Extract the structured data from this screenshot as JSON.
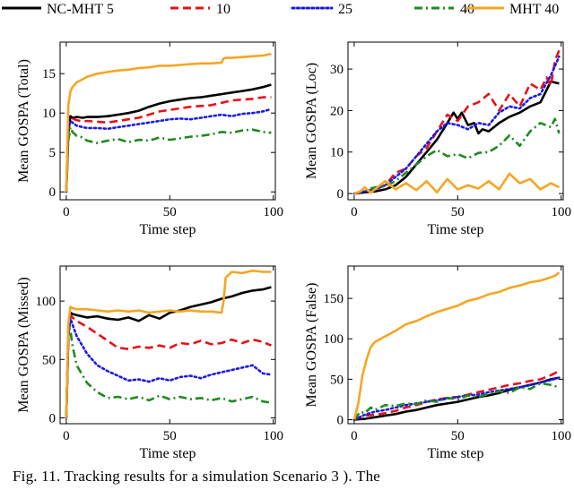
{
  "legend": [
    {
      "label": "NC-MHT 5",
      "color": "#000000",
      "dash": "solid"
    },
    {
      "label": "10",
      "color": "#e8101a",
      "dash": "dashed"
    },
    {
      "label": "25",
      "color": "#1a1ae6",
      "dash": "dotted"
    },
    {
      "label": "40",
      "color": "#1f8a1f",
      "dash": "dashdot"
    },
    {
      "label": "MHT 40",
      "color": "#f5a623",
      "dash": "solid"
    }
  ],
  "caption": "Fig. 11.  Tracking results for a simulation Scenario 3 ). The",
  "chart_data": [
    {
      "type": "line",
      "title": "",
      "xlabel": "Time step",
      "ylabel": "Mean GOSPA (Total)",
      "xlim": [
        -3,
        101
      ],
      "ylim": [
        -1,
        19
      ],
      "xticks": [
        0,
        50,
        100
      ],
      "yticks": [
        0,
        5,
        10,
        15
      ],
      "series": [
        {
          "name": "NC-MHT 5",
          "x": [
            0,
            1,
            2,
            3,
            5,
            8,
            10,
            15,
            20,
            25,
            30,
            35,
            40,
            45,
            50,
            55,
            60,
            65,
            70,
            75,
            80,
            85,
            90,
            95,
            99
          ],
          "y": [
            0,
            7.5,
            9.6,
            9.4,
            9.5,
            9.4,
            9.5,
            9.5,
            9.6,
            9.8,
            10.0,
            10.3,
            10.8,
            11.2,
            11.5,
            11.7,
            11.9,
            12.0,
            12.2,
            12.4,
            12.6,
            12.8,
            13.0,
            13.3,
            13.6
          ]
        },
        {
          "name": "10",
          "x": [
            0,
            1,
            2,
            3,
            5,
            8,
            10,
            15,
            20,
            25,
            30,
            35,
            40,
            45,
            50,
            55,
            60,
            65,
            70,
            75,
            80,
            85,
            90,
            95,
            99
          ],
          "y": [
            0,
            8.5,
            9.2,
            9.3,
            9.1,
            8.9,
            9.0,
            8.9,
            8.8,
            9.0,
            9.2,
            9.4,
            9.8,
            10.2,
            10.4,
            10.6,
            10.8,
            10.9,
            11.0,
            11.3,
            11.6,
            11.7,
            11.8,
            12.0,
            12.0
          ]
        },
        {
          "name": "25",
          "x": [
            0,
            1,
            2,
            3,
            5,
            8,
            10,
            15,
            20,
            25,
            30,
            35,
            40,
            45,
            50,
            55,
            60,
            65,
            70,
            75,
            80,
            85,
            90,
            95,
            99
          ],
          "y": [
            0,
            8.0,
            9.0,
            8.8,
            8.4,
            8.2,
            8.1,
            8.1,
            8.0,
            8.2,
            8.4,
            8.6,
            8.8,
            9.0,
            9.2,
            9.3,
            9.2,
            9.4,
            9.6,
            9.8,
            9.6,
            9.9,
            10.0,
            10.2,
            10.5
          ]
        },
        {
          "name": "40",
          "x": [
            0,
            1,
            2,
            3,
            5,
            8,
            10,
            15,
            20,
            25,
            30,
            35,
            40,
            45,
            50,
            55,
            60,
            65,
            70,
            75,
            80,
            85,
            90,
            95,
            99
          ],
          "y": [
            0,
            6.5,
            8.2,
            7.6,
            7.1,
            6.9,
            6.5,
            6.2,
            6.5,
            6.7,
            6.3,
            6.6,
            6.5,
            6.9,
            6.6,
            6.8,
            7.0,
            7.1,
            7.3,
            7.6,
            7.5,
            7.8,
            7.9,
            7.6,
            7.5
          ]
        },
        {
          "name": "MHT 40",
          "x": [
            0,
            1,
            2,
            3,
            5,
            8,
            10,
            15,
            20,
            25,
            30,
            35,
            40,
            45,
            50,
            55,
            60,
            65,
            70,
            75,
            76,
            77,
            80,
            85,
            90,
            95,
            99
          ],
          "y": [
            0,
            11.0,
            12.7,
            13.3,
            13.9,
            14.3,
            14.6,
            15.0,
            15.2,
            15.4,
            15.5,
            15.7,
            15.8,
            16.0,
            16.0,
            16.1,
            16.2,
            16.3,
            16.3,
            16.4,
            16.9,
            17.0,
            17.0,
            17.1,
            17.2,
            17.3,
            17.5
          ]
        }
      ]
    },
    {
      "type": "line",
      "title": "",
      "xlabel": "Time step",
      "ylabel": "Mean GOSPA (Loc)",
      "xlim": [
        -3,
        101
      ],
      "ylim": [
        -1.5,
        36.5
      ],
      "xticks": [
        0,
        50,
        100
      ],
      "yticks": [
        0,
        10,
        20,
        30
      ],
      "series": [
        {
          "name": "NC-MHT 5",
          "x": [
            0,
            5,
            10,
            15,
            20,
            25,
            30,
            35,
            40,
            45,
            48,
            50,
            52,
            55,
            58,
            60,
            62,
            65,
            70,
            75,
            80,
            85,
            90,
            95,
            99
          ],
          "y": [
            0,
            0.3,
            0.5,
            1.0,
            2.0,
            4.0,
            7.0,
            10.0,
            13.0,
            17.0,
            19.5,
            18.0,
            19.5,
            16.5,
            17.0,
            14.5,
            15.5,
            15.0,
            17.0,
            18.5,
            19.5,
            21.0,
            22.0,
            27.0,
            26.5
          ]
        },
        {
          "name": "10",
          "x": [
            0,
            5,
            10,
            15,
            20,
            25,
            30,
            35,
            40,
            45,
            50,
            55,
            60,
            65,
            70,
            75,
            80,
            85,
            90,
            93,
            95,
            97,
            99
          ],
          "y": [
            0,
            0.5,
            1.0,
            2.0,
            5.0,
            6.0,
            9.0,
            11.0,
            15.0,
            19.0,
            17.5,
            21.0,
            22.0,
            24.0,
            20.0,
            24.0,
            21.0,
            26.5,
            25.0,
            28.0,
            26.0,
            32.0,
            34.5
          ]
        },
        {
          "name": "25",
          "x": [
            0,
            5,
            10,
            15,
            20,
            25,
            30,
            35,
            40,
            45,
            50,
            55,
            60,
            65,
            70,
            75,
            80,
            85,
            90,
            95,
            99
          ],
          "y": [
            0,
            0.5,
            1.0,
            2.0,
            4.0,
            6.0,
            9.0,
            12.0,
            15.0,
            17.0,
            16.5,
            15.5,
            17.0,
            16.5,
            19.5,
            21.0,
            20.5,
            23.0,
            24.0,
            28.5,
            33.0
          ]
        },
        {
          "name": "40",
          "x": [
            0,
            5,
            10,
            15,
            20,
            25,
            30,
            35,
            40,
            45,
            50,
            55,
            60,
            65,
            70,
            75,
            80,
            85,
            90,
            95,
            97,
            99
          ],
          "y": [
            0,
            0.8,
            1.5,
            1.8,
            3.0,
            5.0,
            7.0,
            9.0,
            10.5,
            9.0,
            9.5,
            8.5,
            9.8,
            10.0,
            11.5,
            14.0,
            11.5,
            15.0,
            17.0,
            16.0,
            18.0,
            14.5
          ]
        },
        {
          "name": "MHT 40",
          "x": [
            0,
            3,
            5,
            8,
            10,
            15,
            20,
            25,
            30,
            35,
            40,
            45,
            50,
            55,
            60,
            65,
            70,
            75,
            80,
            85,
            90,
            95,
            99
          ],
          "y": [
            0,
            0.5,
            1.5,
            0.2,
            1.0,
            3.0,
            1.0,
            2.5,
            0.8,
            3.0,
            0.3,
            3.5,
            1.0,
            2.0,
            1.2,
            3.0,
            1.0,
            4.8,
            2.5,
            3.5,
            1.0,
            2.5,
            1.5
          ]
        }
      ]
    },
    {
      "type": "line",
      "title": "",
      "xlabel": "Time step",
      "ylabel": "Mean GOSPA (Missed)",
      "xlim": [
        -3,
        101
      ],
      "ylim": [
        -5,
        130
      ],
      "xticks": [
        0,
        50,
        100
      ],
      "yticks": [
        0,
        50,
        100
      ],
      "series": [
        {
          "name": "NC-MHT 5",
          "x": [
            0,
            1,
            2,
            3,
            5,
            10,
            15,
            20,
            25,
            30,
            35,
            40,
            45,
            50,
            55,
            60,
            65,
            70,
            75,
            80,
            85,
            90,
            95,
            99
          ],
          "y": [
            0,
            70,
            90,
            89,
            88,
            86,
            87,
            85,
            84,
            86,
            83,
            88,
            85,
            90,
            92,
            95,
            97,
            99,
            102,
            104,
            107,
            109,
            110,
            112
          ]
        },
        {
          "name": "10",
          "x": [
            0,
            1,
            2,
            3,
            5,
            10,
            15,
            20,
            25,
            30,
            35,
            40,
            45,
            50,
            55,
            60,
            65,
            70,
            75,
            80,
            85,
            90,
            95,
            99
          ],
          "y": [
            0,
            70,
            88,
            86,
            83,
            78,
            72,
            66,
            60,
            59,
            61,
            60,
            62,
            60,
            64,
            63,
            66,
            63,
            64,
            67,
            64,
            67,
            65,
            62
          ]
        },
        {
          "name": "25",
          "x": [
            0,
            1,
            2,
            3,
            5,
            10,
            15,
            20,
            25,
            30,
            35,
            40,
            45,
            50,
            55,
            60,
            65,
            70,
            75,
            80,
            85,
            90,
            95,
            99
          ],
          "y": [
            0,
            70,
            85,
            80,
            70,
            55,
            45,
            40,
            36,
            32,
            33,
            31,
            34,
            32,
            35,
            36,
            34,
            37,
            39,
            41,
            43,
            45,
            38,
            37
          ]
        },
        {
          "name": "40",
          "x": [
            0,
            1,
            2,
            3,
            5,
            10,
            15,
            20,
            25,
            30,
            35,
            40,
            45,
            50,
            55,
            60,
            65,
            70,
            75,
            80,
            85,
            90,
            95,
            99
          ],
          "y": [
            0,
            80,
            75,
            62,
            45,
            30,
            22,
            17,
            18,
            16,
            18,
            15,
            19,
            16,
            18,
            16,
            17,
            15,
            17,
            14,
            16,
            18,
            14,
            13
          ]
        },
        {
          "name": "MHT 40",
          "x": [
            0,
            1,
            2,
            3,
            5,
            10,
            15,
            20,
            25,
            30,
            35,
            40,
            45,
            50,
            55,
            60,
            65,
            70,
            75,
            76,
            77,
            80,
            85,
            90,
            95,
            99
          ],
          "y": [
            0,
            80,
            95,
            94,
            93,
            93,
            92,
            91,
            92,
            91,
            92,
            90,
            91,
            92,
            91,
            92,
            91,
            91,
            90,
            100,
            120,
            125,
            124,
            126,
            125,
            125
          ]
        }
      ]
    },
    {
      "type": "line",
      "title": "",
      "xlabel": "Time step",
      "ylabel": "Mean GOSPA (False)",
      "xlim": [
        -3,
        101
      ],
      "ylim": [
        -5,
        190
      ],
      "xticks": [
        0,
        50,
        100
      ],
      "yticks": [
        0,
        50,
        100,
        150
      ],
      "series": [
        {
          "name": "NC-MHT 5",
          "x": [
            0,
            5,
            10,
            15,
            20,
            25,
            30,
            35,
            40,
            45,
            50,
            55,
            60,
            65,
            70,
            75,
            80,
            85,
            90,
            95,
            99
          ],
          "y": [
            0,
            1,
            3,
            5,
            7,
            10,
            12,
            15,
            18,
            20,
            22,
            25,
            28,
            30,
            33,
            37,
            40,
            43,
            46,
            50,
            52
          ]
        },
        {
          "name": "10",
          "x": [
            0,
            5,
            10,
            15,
            20,
            25,
            30,
            35,
            40,
            45,
            50,
            55,
            60,
            65,
            70,
            75,
            80,
            85,
            90,
            95,
            99
          ],
          "y": [
            0,
            5,
            6,
            8,
            11,
            15,
            18,
            22,
            25,
            27,
            28,
            31,
            34,
            37,
            40,
            43,
            45,
            48,
            50,
            55,
            60
          ]
        },
        {
          "name": "25",
          "x": [
            0,
            5,
            10,
            15,
            20,
            25,
            30,
            35,
            40,
            45,
            50,
            55,
            60,
            65,
            70,
            75,
            80,
            85,
            90,
            95,
            99
          ],
          "y": [
            0,
            6,
            10,
            12,
            15,
            18,
            20,
            22,
            24,
            26,
            28,
            30,
            31,
            34,
            36,
            38,
            40,
            43,
            46,
            49,
            52
          ]
        },
        {
          "name": "40",
          "x": [
            0,
            3,
            5,
            8,
            10,
            15,
            20,
            25,
            30,
            35,
            40,
            45,
            50,
            55,
            60,
            65,
            70,
            75,
            80,
            85,
            90,
            95,
            99
          ],
          "y": [
            0,
            10,
            8,
            15,
            12,
            18,
            17,
            20,
            19,
            24,
            22,
            27,
            25,
            30,
            28,
            32,
            35,
            33,
            40,
            38,
            45,
            43,
            40
          ]
        },
        {
          "name": "MHT 40",
          "x": [
            0,
            2,
            4,
            6,
            8,
            10,
            15,
            20,
            25,
            30,
            35,
            40,
            45,
            50,
            55,
            60,
            65,
            70,
            75,
            80,
            85,
            90,
            95,
            97,
            99
          ],
          "y": [
            0,
            20,
            55,
            75,
            90,
            96,
            103,
            110,
            118,
            122,
            128,
            133,
            137,
            141,
            147,
            150,
            155,
            158,
            163,
            166,
            170,
            172,
            176,
            178,
            182
          ]
        }
      ]
    }
  ]
}
